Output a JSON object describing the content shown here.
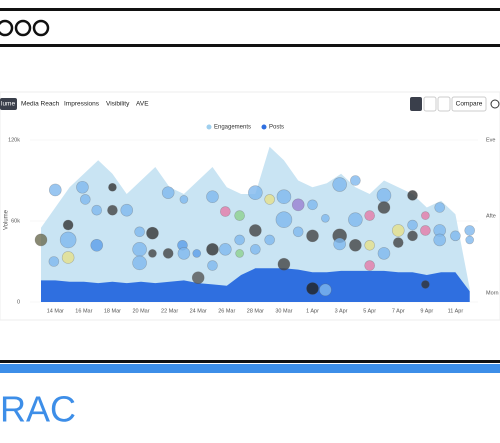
{
  "header": {},
  "tabs": [
    "lume",
    "Media Reach",
    "Impressions",
    "Visibility",
    "AVE"
  ],
  "compare": "Compare",
  "brand": "RAC",
  "chart_data": {
    "type": "area",
    "y_label": "Volume",
    "categories": [
      null,
      "14 Mar",
      null,
      "16 Mar",
      null,
      "18 Mar",
      null,
      "20 Mar",
      null,
      "22 Mar",
      null,
      "24 Mar",
      null,
      "26 Mar",
      null,
      "28 Mar",
      null,
      "30 Mar",
      null,
      "1 Apr",
      null,
      "3 Apr",
      null,
      "5 Apr",
      null,
      "7 Apr",
      null,
      "9 Apr",
      null,
      "11 Apr",
      null
    ],
    "series": [
      {
        "name": "Engagements",
        "color": "#c9e4f3",
        "values": [
          55000,
          70000,
          85000,
          95000,
          105000,
          95000,
          80000,
          90000,
          100000,
          85000,
          80000,
          90000,
          100000,
          85000,
          80000,
          80000,
          115000,
          105000,
          90000,
          85000,
          88000,
          95000,
          85000,
          80000,
          90000,
          85000,
          80000,
          70000,
          75000,
          65000,
          10000
        ]
      },
      {
        "name": "Posts",
        "color": "#2f6fe0",
        "values": [
          16000,
          16000,
          15000,
          15000,
          14000,
          15000,
          14000,
          15000,
          14000,
          15000,
          16000,
          14000,
          13000,
          12000,
          20000,
          25000,
          25000,
          25000,
          24000,
          22000,
          22000,
          23000,
          23000,
          23000,
          23000,
          22000,
          22000,
          20000,
          22000,
          22000,
          8000
        ]
      }
    ],
    "ylim": [
      0,
      120000
    ],
    "yticks": [
      0,
      {
        "value": 60000,
        "label": "60k"
      },
      {
        "value": 120000,
        "label": "120k"
      }
    ],
    "y2_labels": [
      "Eve",
      "Afte",
      "Morn"
    ],
    "bubbles": [
      {
        "x": 1,
        "y": 83000,
        "size": 6,
        "color": "#7fb8ee"
      },
      {
        "x": 0,
        "y": 46000,
        "size": 6,
        "color": "#6b6b50"
      },
      {
        "x": 1.9,
        "y": 57000,
        "size": 5,
        "color": "#333"
      },
      {
        "x": 1.9,
        "y": 46000,
        "size": 8,
        "color": "#7fb8ee"
      },
      {
        "x": 1.9,
        "y": 33000,
        "size": 6,
        "color": "#e6e08a"
      },
      {
        "x": 0.9,
        "y": 30000,
        "size": 5,
        "color": "#7fb8ee"
      },
      {
        "x": 2.9,
        "y": 85000,
        "size": 6,
        "color": "#7fb8ee"
      },
      {
        "x": 3.1,
        "y": 76000,
        "size": 5,
        "color": "#7fb8ee"
      },
      {
        "x": 3.9,
        "y": 68000,
        "size": 5,
        "color": "#7fb8ee"
      },
      {
        "x": 3.9,
        "y": 42000,
        "size": 6,
        "color": "#5b9ee8"
      },
      {
        "x": 5,
        "y": 85000,
        "size": 4,
        "color": "#333"
      },
      {
        "x": 5,
        "y": 68000,
        "size": 5,
        "color": "#444"
      },
      {
        "x": 6,
        "y": 68000,
        "size": 6,
        "color": "#7fb8ee"
      },
      {
        "x": 6.9,
        "y": 52000,
        "size": 5,
        "color": "#7fb8ee"
      },
      {
        "x": 6.9,
        "y": 39000,
        "size": 7,
        "color": "#7fb8ee"
      },
      {
        "x": 6.9,
        "y": 29000,
        "size": 7,
        "color": "#7fb8ee"
      },
      {
        "x": 7.8,
        "y": 51000,
        "size": 6,
        "color": "#333"
      },
      {
        "x": 7.8,
        "y": 36000,
        "size": 4,
        "color": "#444"
      },
      {
        "x": 8.9,
        "y": 81000,
        "size": 6,
        "color": "#7fb8ee"
      },
      {
        "x": 8.9,
        "y": 36000,
        "size": 5,
        "color": "#444"
      },
      {
        "x": 9.9,
        "y": 42000,
        "size": 5,
        "color": "#5b9ee8"
      },
      {
        "x": 10,
        "y": 36000,
        "size": 6,
        "color": "#7fb8ee"
      },
      {
        "x": 10,
        "y": 76000,
        "size": 4,
        "color": "#7fb8ee"
      },
      {
        "x": 10.9,
        "y": 36000,
        "size": 4,
        "color": "#5b9ee8"
      },
      {
        "x": 11,
        "y": 18000,
        "size": 6,
        "color": "#555"
      },
      {
        "x": 12,
        "y": 39000,
        "size": 6,
        "color": "#333"
      },
      {
        "x": 12,
        "y": 27000,
        "size": 5,
        "color": "#7fb8ee"
      },
      {
        "x": 12,
        "y": 78000,
        "size": 6,
        "color": "#7fb8ee"
      },
      {
        "x": 12.9,
        "y": 67000,
        "size": 5,
        "color": "#e57aa8"
      },
      {
        "x": 12.9,
        "y": 39000,
        "size": 6,
        "color": "#7fb8ee"
      },
      {
        "x": 13.9,
        "y": 64000,
        "size": 5,
        "color": "#8fd18f"
      },
      {
        "x": 13.9,
        "y": 46000,
        "size": 5,
        "color": "#7fb8ee"
      },
      {
        "x": 13.9,
        "y": 36000,
        "size": 4,
        "color": "#8fd18f"
      },
      {
        "x": 15,
        "y": 53000,
        "size": 6,
        "color": "#444"
      },
      {
        "x": 15,
        "y": 39000,
        "size": 5,
        "color": "#7fb8ee"
      },
      {
        "x": 15,
        "y": 81000,
        "size": 7,
        "color": "#7fb8ee"
      },
      {
        "x": 16,
        "y": 76000,
        "size": 5,
        "color": "#e6e08a"
      },
      {
        "x": 16,
        "y": 46000,
        "size": 5,
        "color": "#7fb8ee"
      },
      {
        "x": 17,
        "y": 78000,
        "size": 7,
        "color": "#7fb8ee"
      },
      {
        "x": 17,
        "y": 61000,
        "size": 8,
        "color": "#7fb8ee"
      },
      {
        "x": 17,
        "y": 28000,
        "size": 6,
        "color": "#444"
      },
      {
        "x": 18,
        "y": 72000,
        "size": 6,
        "color": "#9a7fd1"
      },
      {
        "x": 18,
        "y": 52000,
        "size": 5,
        "color": "#7fb8ee"
      },
      {
        "x": 19,
        "y": 49000,
        "size": 6,
        "color": "#444"
      },
      {
        "x": 19,
        "y": 72000,
        "size": 5,
        "color": "#7fb8ee"
      },
      {
        "x": 19,
        "y": 10000,
        "size": 6,
        "color": "#222"
      },
      {
        "x": 19.9,
        "y": 62000,
        "size": 4,
        "color": "#7fb8ee"
      },
      {
        "x": 19.9,
        "y": 9000,
        "size": 6,
        "color": "#7fb8ee"
      },
      {
        "x": 20.9,
        "y": 87000,
        "size": 7,
        "color": "#7fb8ee"
      },
      {
        "x": 20.9,
        "y": 49000,
        "size": 7,
        "color": "#444"
      },
      {
        "x": 20.9,
        "y": 43000,
        "size": 6,
        "color": "#7fb8ee"
      },
      {
        "x": 22,
        "y": 90000,
        "size": 5,
        "color": "#7fb8ee"
      },
      {
        "x": 22,
        "y": 61000,
        "size": 7,
        "color": "#7fb8ee"
      },
      {
        "x": 22,
        "y": 42000,
        "size": 6,
        "color": "#444"
      },
      {
        "x": 23,
        "y": 64000,
        "size": 5,
        "color": "#e57aa8"
      },
      {
        "x": 23,
        "y": 42000,
        "size": 5,
        "color": "#e6e08a"
      },
      {
        "x": 23,
        "y": 27000,
        "size": 5,
        "color": "#e57aa8"
      },
      {
        "x": 24,
        "y": 79000,
        "size": 7,
        "color": "#7fb8ee"
      },
      {
        "x": 24,
        "y": 70000,
        "size": 6,
        "color": "#444"
      },
      {
        "x": 24,
        "y": 36000,
        "size": 6,
        "color": "#7fb8ee"
      },
      {
        "x": 25,
        "y": 53000,
        "size": 6,
        "color": "#e6e08a"
      },
      {
        "x": 25,
        "y": 44000,
        "size": 5,
        "color": "#444"
      },
      {
        "x": 26,
        "y": 79000,
        "size": 5,
        "color": "#333"
      },
      {
        "x": 26,
        "y": 57000,
        "size": 5,
        "color": "#7fb8ee"
      },
      {
        "x": 26,
        "y": 49000,
        "size": 5,
        "color": "#444"
      },
      {
        "x": 26.9,
        "y": 64000,
        "size": 4,
        "color": "#e57aa8"
      },
      {
        "x": 26.9,
        "y": 53000,
        "size": 5,
        "color": "#e57aa8"
      },
      {
        "x": 26.9,
        "y": 13000,
        "size": 4,
        "color": "#333"
      },
      {
        "x": 27.9,
        "y": 70000,
        "size": 5,
        "color": "#7fb8ee"
      },
      {
        "x": 27.9,
        "y": 53000,
        "size": 6,
        "color": "#7fb8ee"
      },
      {
        "x": 27.9,
        "y": 46000,
        "size": 6,
        "color": "#7fb8ee"
      },
      {
        "x": 29,
        "y": 49000,
        "size": 5,
        "color": "#7fb8ee"
      },
      {
        "x": 30,
        "y": 53000,
        "size": 5,
        "color": "#7fb8ee"
      },
      {
        "x": 30,
        "y": 46000,
        "size": 4,
        "color": "#7fb8ee"
      }
    ]
  }
}
